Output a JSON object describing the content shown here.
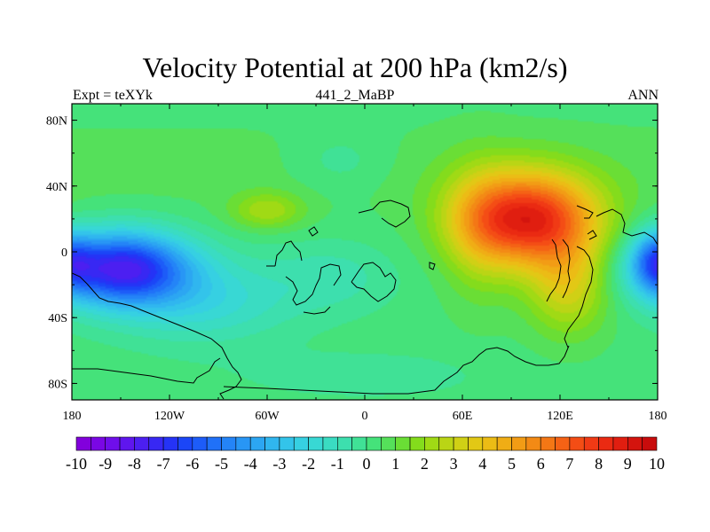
{
  "title": "Velocity Potential at 200 hPa (km2/s)",
  "subtitle_left": "Expt = teXYk",
  "subtitle_center": "441_2_MaBP",
  "subtitle_right": "ANN",
  "chart_data": {
    "type": "heatmap",
    "title": "Velocity Potential at 200 hPa (km2/s)",
    "xlabel": "",
    "ylabel": "",
    "xlim": [
      -180,
      180
    ],
    "ylim": [
      -90,
      90
    ],
    "x_ticks": [
      {
        "value": -180,
        "label": "180"
      },
      {
        "value": -120,
        "label": "120W"
      },
      {
        "value": -60,
        "label": "60W"
      },
      {
        "value": 0,
        "label": "0"
      },
      {
        "value": 60,
        "label": "60E"
      },
      {
        "value": 120,
        "label": "120E"
      },
      {
        "value": 180,
        "label": "180"
      }
    ],
    "y_ticks": [
      {
        "value": 80,
        "label": "80N"
      },
      {
        "value": 40,
        "label": "40N"
      },
      {
        "value": 0,
        "label": "0"
      },
      {
        "value": -40,
        "label": "40S"
      },
      {
        "value": -80,
        "label": "80S"
      }
    ],
    "colorbar": {
      "min": -10,
      "max": 10,
      "step": 0.5,
      "labels": [
        "-10",
        "-9",
        "-8",
        "-7",
        "-6",
        "-5",
        "-4",
        "-3",
        "-2",
        "-1",
        "0",
        "1",
        "2",
        "3",
        "4",
        "5",
        "6",
        "7",
        "8",
        "9",
        "10"
      ],
      "colors": [
        "#8200dc",
        "#7a07e4",
        "#6f0eea",
        "#5f16ee",
        "#4c1ff1",
        "#3828f3",
        "#2533f6",
        "#1b46f7",
        "#1d5cf8",
        "#2071f8",
        "#2484f7",
        "#2896f5",
        "#2ca6f2",
        "#30b6ef",
        "#33c4ea",
        "#36d0e2",
        "#38d8d4",
        "#3adcc2",
        "#3ddfae",
        "#40e196",
        "#45e27a",
        "#55e05a",
        "#6ade35",
        "#84dc1c",
        "#a0da15",
        "#bad515",
        "#d0d015",
        "#e2c815",
        "#ecbc15",
        "#f0ad15",
        "#f29c15",
        "#f38a15",
        "#f47715",
        "#f56215",
        "#f44d15",
        "#f03a15",
        "#ea2a12",
        "#e01e10",
        "#d4140e",
        "#c80c0c"
      ]
    },
    "field_centers": [
      {
        "lon": 100,
        "lat": 22,
        "value": 9.0,
        "note": "max"
      },
      {
        "lon": -155,
        "lat": -10,
        "value": -9.5,
        "note": "min"
      },
      {
        "lon": -60,
        "lat": 25,
        "value": 2.5,
        "note": "local max"
      },
      {
        "lon": 180,
        "lat": -5,
        "value": -3.0,
        "note": "dateline min"
      }
    ],
    "grid": false
  }
}
